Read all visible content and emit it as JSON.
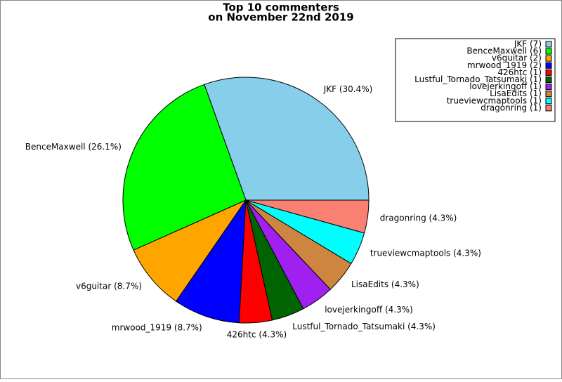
{
  "chart_data": {
    "type": "pie",
    "title": [
      "Top 10 commenters",
      "on November 22nd 2019"
    ],
    "values": [
      30.4,
      26.1,
      8.7,
      8.7,
      4.3,
      4.3,
      4.3,
      4.3,
      4.3,
      4.3
    ],
    "value_labels": [
      "JKF (30.4%)",
      "BenceMaxwell (26.1%)",
      "v6guitar (8.7%)",
      "mrwood_1919 (8.7%)",
      "426htc (4.3%)",
      "Lustful_Tornado_Tatsumaki (4.3%)",
      "lovejerkingoff (4.3%)",
      "LisaEdits (4.3%)",
      "trueviewcmaptools (4.3%)",
      "dragonring (4.3%)"
    ],
    "legend_labels": [
      "JKF (7)",
      "BenceMaxwell (6)",
      "v6guitar (2)",
      "mrwood_1919 (2)",
      "426htc (1)",
      "Lustful_Tornado_Tatsumaki (1)",
      "lovejerkingoff (1)",
      "LisaEdits (1)",
      "trueviewcmaptools (1)",
      "dragonring (1)"
    ],
    "colors": [
      "#87ceeb",
      "#00ff00",
      "#ffa500",
      "#0000ff",
      "#ff0000",
      "#006400",
      "#a020f0",
      "#cd853f",
      "#00ffff",
      "#fa8072"
    ],
    "legend": "upper right"
  }
}
